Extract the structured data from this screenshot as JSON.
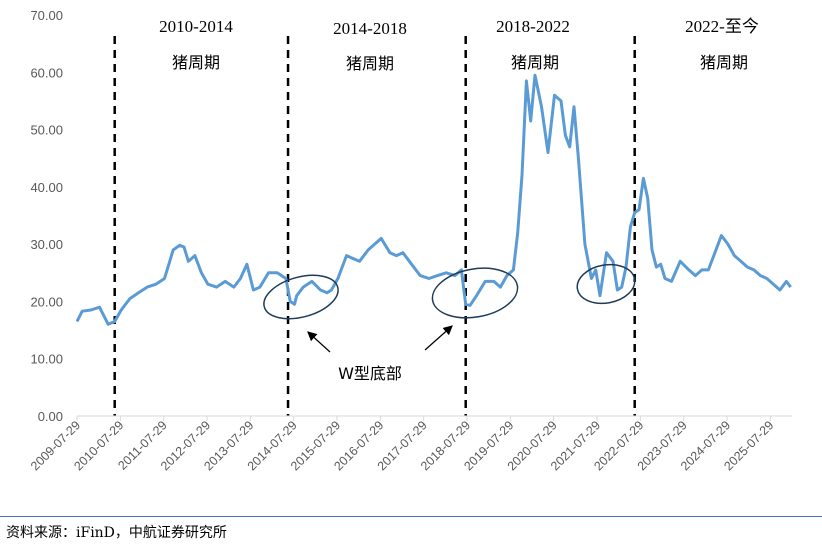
{
  "chart_data": {
    "type": "line",
    "title": "",
    "xlabel": "",
    "ylabel": "",
    "ylim": [
      0,
      70
    ],
    "yticks": [
      "0.00",
      "10.00",
      "20.00",
      "30.00",
      "40.00",
      "50.00",
      "60.00",
      "70.00"
    ],
    "xticks": [
      "2009-07-29",
      "2010-07-29",
      "2011-07-29",
      "2012-07-29",
      "2013-07-29",
      "2014-07-29",
      "2015-07-29",
      "2016-07-29",
      "2017-07-29",
      "2018-07-29",
      "2019-07-29",
      "2020-07-29",
      "2021-07-29",
      "2022-07-29",
      "2023-07-29",
      "2024-07-29",
      "2025-07-29"
    ],
    "grid": false,
    "line_color": "#5b9bd5",
    "x": [
      2009.58,
      2009.7,
      2009.9,
      2010.1,
      2010.3,
      2010.45,
      2010.6,
      2010.8,
      2011.0,
      2011.2,
      2011.4,
      2011.6,
      2011.8,
      2011.95,
      2012.05,
      2012.15,
      2012.3,
      2012.45,
      2012.6,
      2012.8,
      2013.0,
      2013.2,
      2013.35,
      2013.5,
      2013.65,
      2013.8,
      2014.0,
      2014.2,
      2014.4,
      2014.5,
      2014.6,
      2014.65,
      2014.8,
      2015.0,
      2015.2,
      2015.35,
      2015.45,
      2015.6,
      2015.8,
      2015.95,
      2016.1,
      2016.3,
      2016.45,
      2016.6,
      2016.8,
      2016.95,
      2017.1,
      2017.3,
      2017.5,
      2017.7,
      2017.9,
      2018.1,
      2018.3,
      2018.45,
      2018.55,
      2018.65,
      2018.8,
      2019.0,
      2019.2,
      2019.35,
      2019.5,
      2019.65,
      2019.75,
      2019.85,
      2019.95,
      2020.05,
      2020.15,
      2020.3,
      2020.45,
      2020.6,
      2020.75,
      2020.85,
      2020.95,
      2021.05,
      2021.15,
      2021.3,
      2021.45,
      2021.55,
      2021.65,
      2021.8,
      2021.95,
      2022.05,
      2022.15,
      2022.25,
      2022.35,
      2022.45,
      2022.55,
      2022.65,
      2022.75,
      2022.85,
      2022.95,
      2023.05,
      2023.15,
      2023.3,
      2023.5,
      2023.7,
      2023.85,
      2024.0,
      2024.15,
      2024.3,
      2024.45,
      2024.6,
      2024.75,
      2024.9,
      2025.05,
      2025.2,
      2025.35,
      2025.5,
      2025.65,
      2025.8,
      2025.95,
      2026.05
    ],
    "values": [
      16.5,
      18.3,
      18.5,
      19.0,
      16.0,
      16.5,
      18.5,
      20.5,
      21.5,
      22.5,
      23.0,
      24.0,
      29.0,
      29.8,
      29.5,
      27.0,
      28.0,
      25.0,
      23.0,
      22.5,
      23.5,
      22.5,
      24.0,
      26.5,
      22.0,
      22.5,
      25.0,
      25.0,
      24.0,
      20.0,
      19.5,
      21.0,
      22.5,
      23.5,
      22.0,
      21.5,
      22.0,
      24.0,
      28.0,
      27.5,
      27.0,
      29.0,
      30.0,
      31.0,
      28.5,
      28.0,
      28.5,
      26.5,
      24.5,
      24.0,
      24.5,
      25.0,
      24.5,
      25.5,
      19.5,
      19.3,
      21.0,
      23.5,
      23.5,
      22.5,
      24.5,
      25.5,
      32.0,
      42.0,
      58.5,
      51.5,
      59.5,
      54.0,
      46.0,
      56.0,
      55.0,
      49.0,
      47.0,
      54.0,
      45.0,
      30.0,
      24.0,
      25.5,
      21.0,
      28.5,
      27.0,
      22.0,
      22.5,
      26.0,
      33.0,
      35.5,
      36.0,
      41.5,
      38.0,
      29.0,
      26.0,
      26.5,
      24.0,
      23.5,
      27.0,
      25.5,
      24.5,
      25.5,
      25.5,
      28.5,
      31.5,
      30.0,
      28.0,
      27.0,
      26.0,
      25.5,
      24.5,
      24.0,
      23.0,
      22.0,
      23.5,
      22.5
    ],
    "annotations": {
      "periods": [
        {
          "years": "2010-2014",
          "name": "猪周期"
        },
        {
          "years": "2014-2018",
          "name": "猪周期"
        },
        {
          "years": "2018-2022",
          "name": "猪周期"
        },
        {
          "years": "2022-至今",
          "name": "猪周期"
        }
      ],
      "dividers_at": [
        2010.45,
        2014.45,
        2018.55,
        2022.45
      ],
      "w_bottom_label": "W型底部"
    }
  },
  "source": "资料来源：iFinD，中航证券研究所"
}
